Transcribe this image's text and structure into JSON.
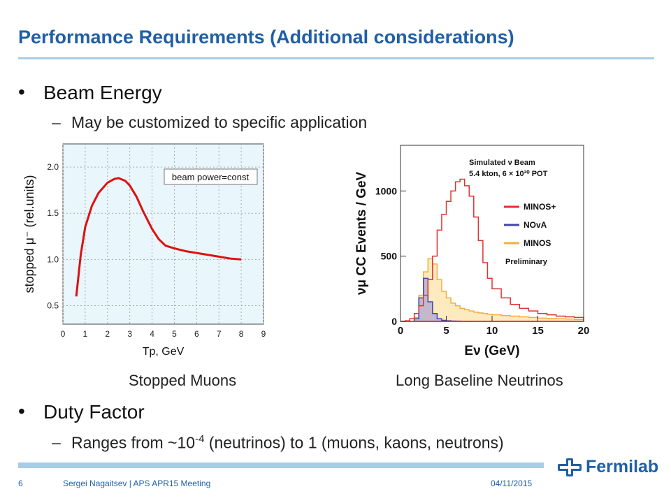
{
  "slide": {
    "title": "Performance Requirements (Additional considerations)",
    "bullets": [
      {
        "symbol": "•",
        "text": "Beam Energy",
        "sub": {
          "dash": "–",
          "text": "May be customized to specific application"
        }
      },
      {
        "symbol": "•",
        "text": "Duty Factor",
        "sub": {
          "dash": "–",
          "text_before": "Ranges from ~10",
          "superscript": "-4",
          "text_after": " (neutrinos) to 1 (muons, kaons, neutrons)"
        }
      }
    ],
    "captions": {
      "left": "Stopped Muons",
      "right": "Long Baseline Neutrinos"
    },
    "footer": {
      "page": "6",
      "author": "Sergei Nagaitsev | APS APR15 Meeting",
      "date": "04/11/2015"
    },
    "logo_text": "Fermilab",
    "colors": {
      "title": "#1f5fa6",
      "rule": "#a8cde6",
      "muon_curve": "#dd1111",
      "minosplus": "#dd3333",
      "nova": "#4444aa",
      "minos": "#f0b040"
    }
  },
  "chart_data": [
    {
      "type": "line",
      "xlabel": "Tp, GeV",
      "ylabel": "stopped μ⁻ (rel.units)",
      "xlim": [
        0,
        9
      ],
      "ylim": [
        0.3,
        2.25
      ],
      "x_ticks": [
        "0",
        "1",
        "2",
        "3",
        "4",
        "5",
        "6",
        "7",
        "8",
        "9"
      ],
      "y_ticks": [
        "0.5",
        "1.0",
        "1.5",
        "2.0"
      ],
      "legend": [
        "beam power=const"
      ],
      "grid": true,
      "series": [
        {
          "x": [
            0.6,
            0.8,
            1.0,
            1.3,
            1.6,
            2.0,
            2.3,
            2.5,
            2.8,
            3.0,
            3.3,
            3.6,
            4.0,
            4.3,
            4.6,
            5.0,
            5.5,
            6.0,
            6.5,
            7.0,
            7.5,
            8.0
          ],
          "y": [
            0.6,
            1.05,
            1.35,
            1.58,
            1.72,
            1.83,
            1.87,
            1.88,
            1.85,
            1.8,
            1.68,
            1.52,
            1.33,
            1.22,
            1.15,
            1.12,
            1.09,
            1.07,
            1.05,
            1.03,
            1.01,
            1.0
          ]
        }
      ]
    },
    {
      "type": "bar",
      "xlabel": "Eν (GeV)",
      "ylabel": "νμ CC Events / GeV",
      "xlim": [
        0,
        20
      ],
      "ylim": [
        0,
        1350
      ],
      "x_ticks": [
        "0",
        "5",
        "10",
        "15",
        "20"
      ],
      "y_ticks": [
        "0",
        "500",
        "1000"
      ],
      "annotations": [
        "Simulated ν Beam",
        "5.4 kton, 6 × 10²⁰ POT",
        "Preliminary"
      ],
      "bin_edges": [
        0,
        0.5,
        1,
        1.5,
        2,
        2.5,
        3,
        3.5,
        4,
        4.5,
        5,
        5.5,
        6,
        6.5,
        7,
        7.5,
        8,
        8.5,
        9,
        9.5,
        10,
        11,
        12,
        13,
        14,
        15,
        16,
        17,
        18,
        19,
        20
      ],
      "series": [
        {
          "name": "MINOS+",
          "values": [
            0,
            5,
            20,
            60,
            120,
            200,
            320,
            500,
            700,
            820,
            920,
            1000,
            1070,
            1090,
            1040,
            960,
            800,
            620,
            450,
            330,
            250,
            180,
            130,
            100,
            80,
            60,
            50,
            40,
            35,
            30
          ]
        },
        {
          "name": "NOvA",
          "values": [
            0,
            0,
            0,
            20,
            180,
            330,
            150,
            60,
            20,
            8,
            5,
            3,
            2,
            1,
            1,
            0,
            0,
            0,
            0,
            0,
            0,
            0,
            0,
            0,
            0,
            0,
            0,
            0,
            0,
            0
          ]
        },
        {
          "name": "MINOS",
          "values": [
            0,
            0,
            0,
            30,
            200,
            380,
            480,
            440,
            320,
            230,
            180,
            140,
            120,
            100,
            90,
            80,
            70,
            65,
            60,
            55,
            50,
            45,
            40,
            35,
            30,
            25,
            22,
            20,
            18,
            15
          ]
        }
      ]
    }
  ]
}
